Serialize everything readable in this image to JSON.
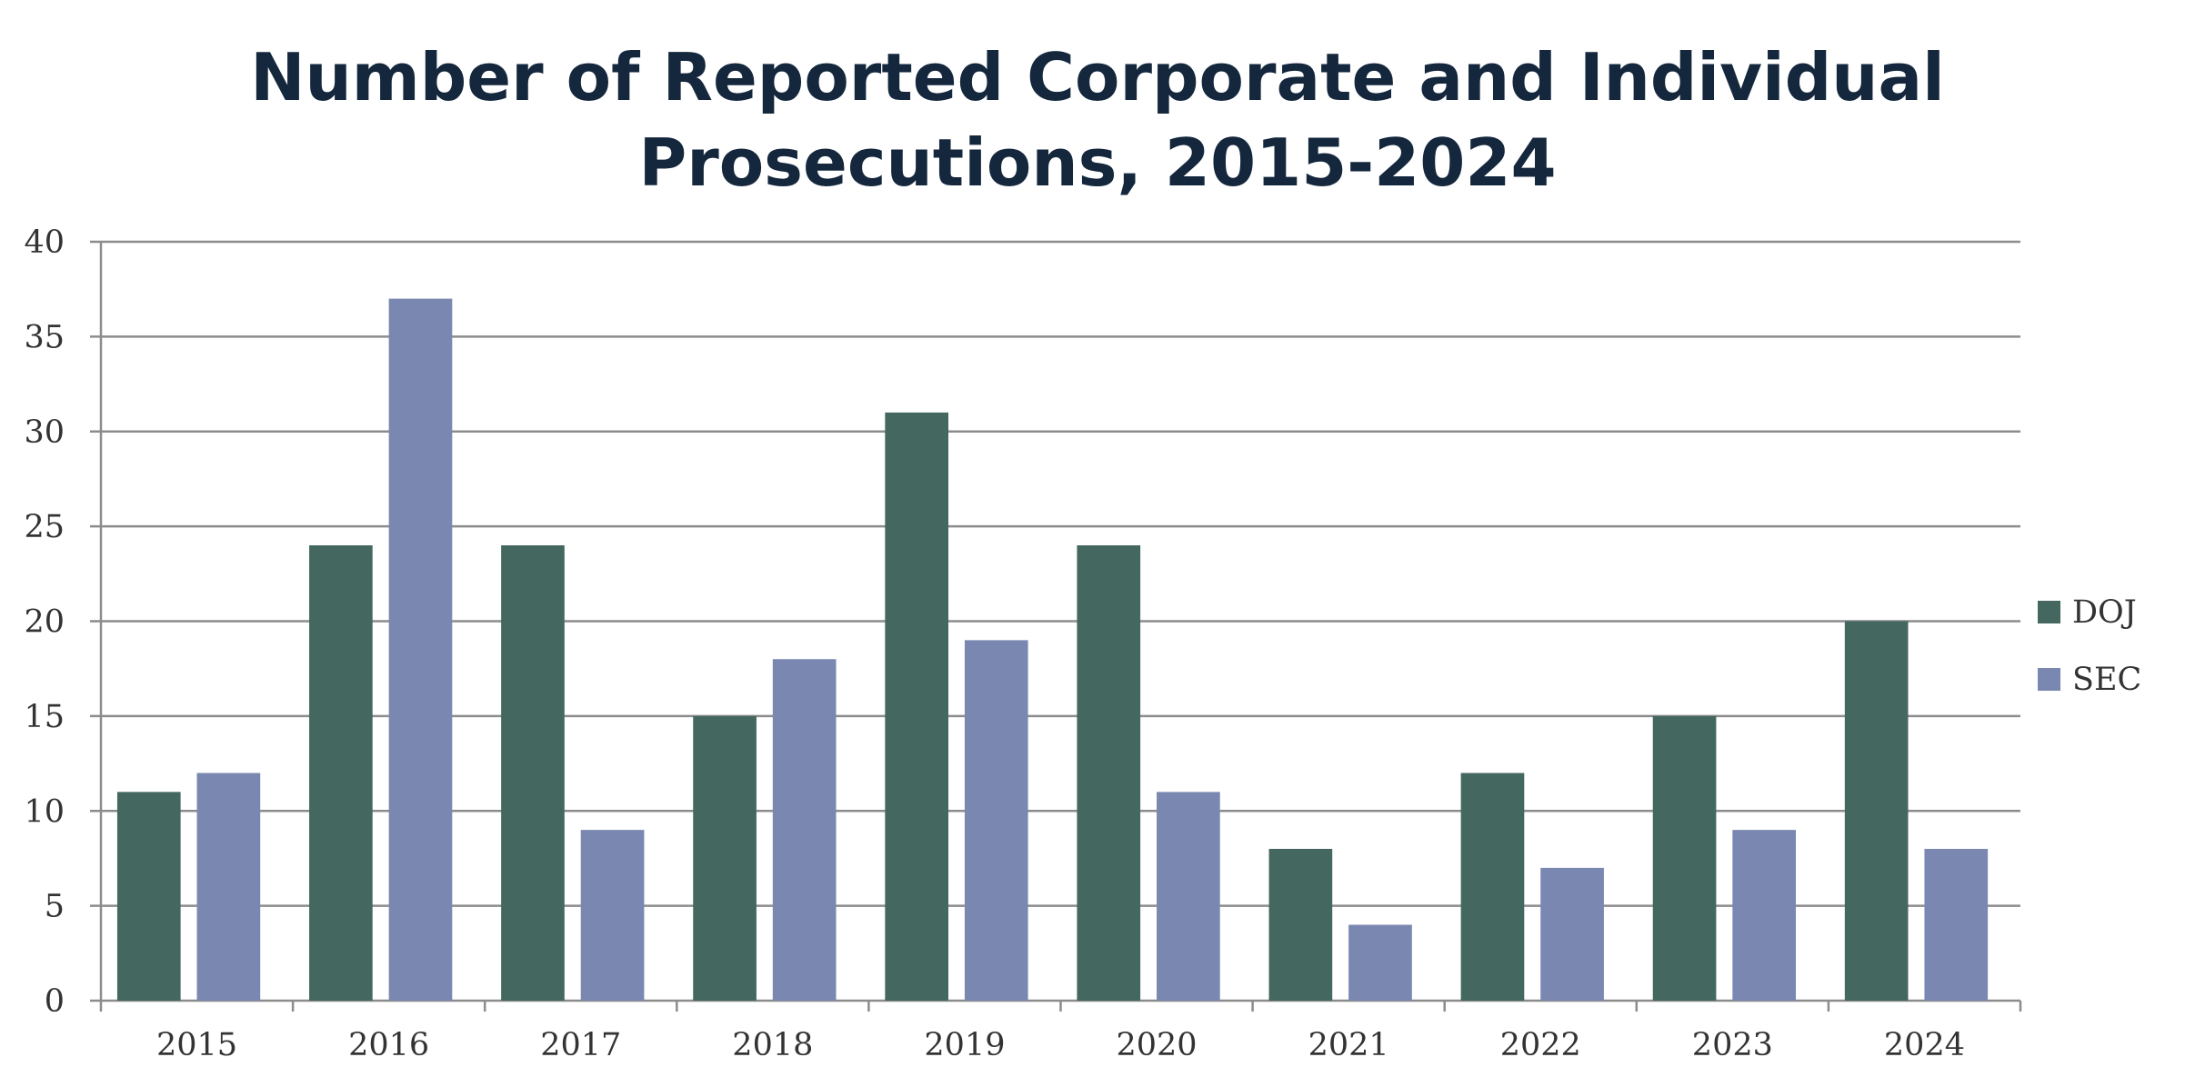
{
  "chart_data": {
    "type": "bar",
    "title_lines": [
      "Number of Reported Corporate and Individual",
      "Prosecutions, 2015-2024"
    ],
    "xlabel": "",
    "ylabel": "",
    "categories": [
      "2015",
      "2016",
      "2017",
      "2018",
      "2019",
      "2020",
      "2021",
      "2022",
      "2023",
      "2024"
    ],
    "series": [
      {
        "name": "DOJ",
        "color": "#44675f",
        "values": [
          11,
          24,
          24,
          15,
          31,
          24,
          8,
          12,
          15,
          20
        ]
      },
      {
        "name": "SEC",
        "color": "#7a87b0",
        "values": [
          12,
          37,
          9,
          18,
          19,
          11,
          4,
          7,
          9,
          8
        ]
      }
    ],
    "ylim": [
      0,
      40
    ],
    "yticks": [
      0,
      5,
      10,
      15,
      20,
      25,
      30,
      35,
      40
    ],
    "grid": true,
    "legend_position": "right"
  }
}
